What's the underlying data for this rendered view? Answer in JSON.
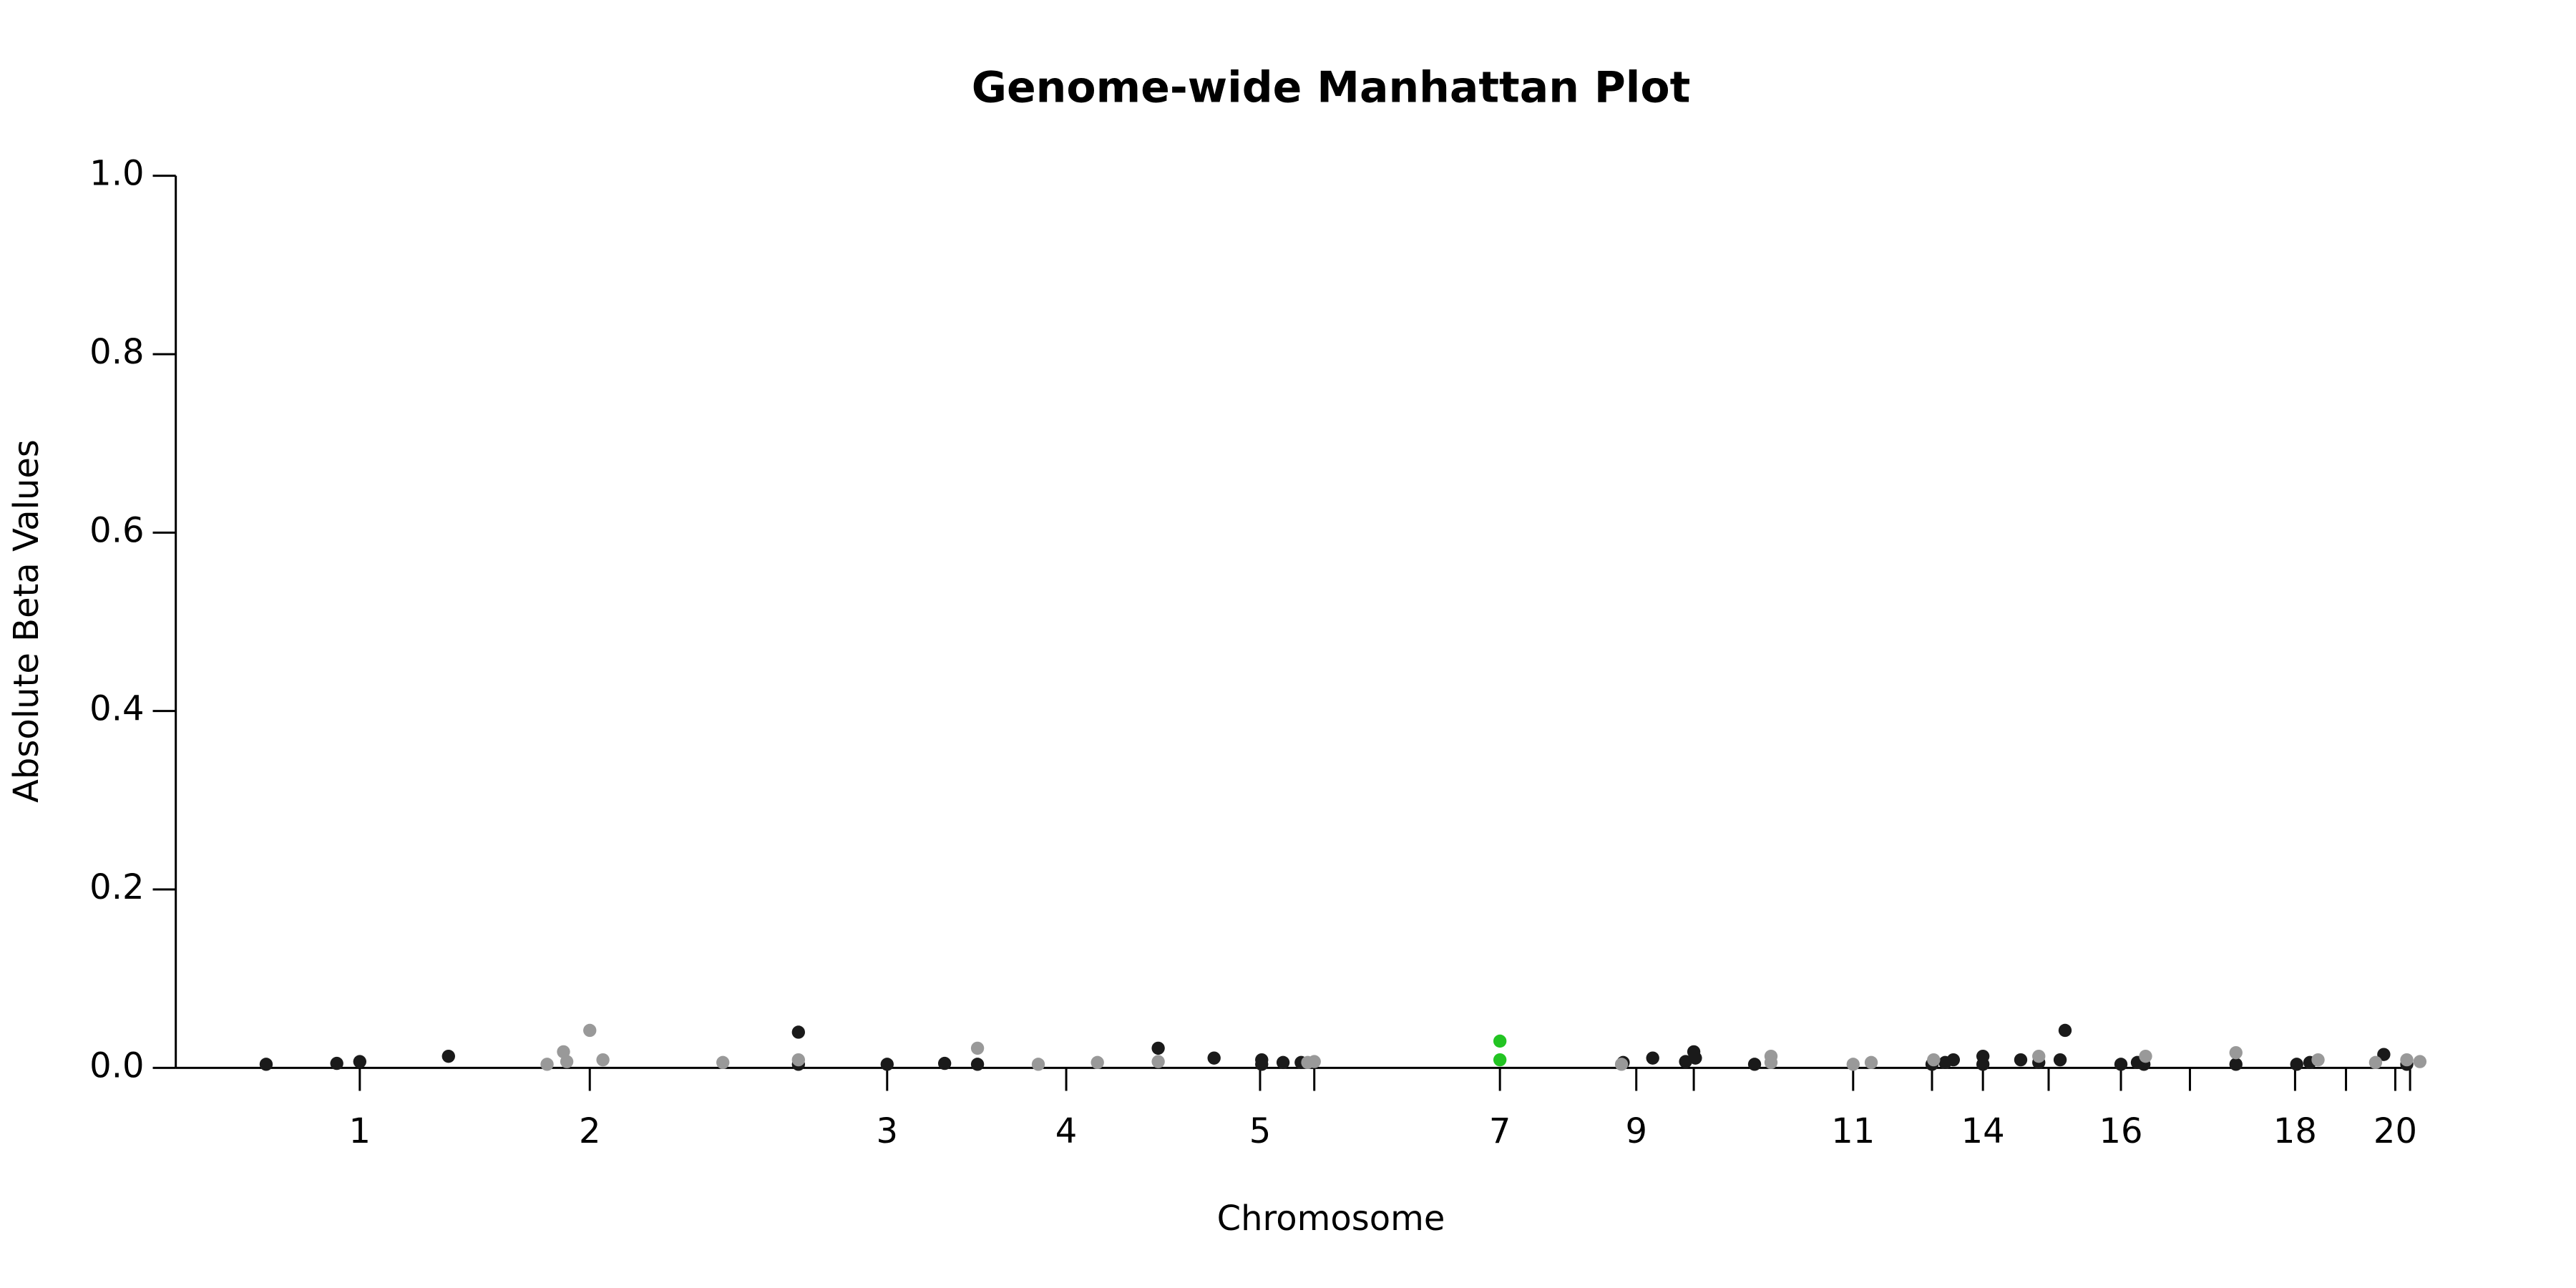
{
  "chart_data": {
    "type": "scatter",
    "title": "Genome-wide Manhattan Plot",
    "x_label": "Chromosome",
    "y_label": "Absolute Beta Values",
    "xlim": [
      107,
      1473
    ],
    "ylim": [
      0,
      1.0
    ],
    "yticks": [
      {
        "value": 0,
        "label": "0.0"
      },
      {
        "value": 0.2,
        "label": "0.2"
      },
      {
        "value": 0.4,
        "label": "0.4"
      },
      {
        "value": 0.6,
        "label": "0.6"
      },
      {
        "value": 0.8,
        "label": "0.8"
      },
      {
        "value": 1.0,
        "label": "1.0"
      }
    ],
    "xticks": [
      {
        "value": 219,
        "label": "1"
      },
      {
        "value": 359,
        "label": "2"
      },
      {
        "value": 540,
        "label": "3"
      },
      {
        "value": 649,
        "label": "4"
      },
      {
        "value": 767,
        "label": "5"
      },
      {
        "value": 800,
        "label": null
      },
      {
        "value": 913,
        "label": "7"
      },
      {
        "value": 996,
        "label": "9"
      },
      {
        "value": 1031,
        "label": null
      },
      {
        "value": 1128,
        "label": "11"
      },
      {
        "value": 1176,
        "label": null
      },
      {
        "value": 1207,
        "label": "14"
      },
      {
        "value": 1247,
        "label": null
      },
      {
        "value": 1291,
        "label": "16"
      },
      {
        "value": 1333,
        "label": null
      },
      {
        "value": 1397,
        "label": "18"
      },
      {
        "value": 1428,
        "label": null
      },
      {
        "value": 1458,
        "label": "20"
      },
      {
        "value": 1467,
        "label": null
      }
    ],
    "series": [
      {
        "color": "#1a1a1a",
        "x": [
          162,
          205,
          219,
          273,
          486,
          486,
          540,
          575,
          595,
          705,
          739,
          768,
          768,
          781,
          792,
          988,
          1006,
          1026,
          1031,
          1032,
          1068,
          1176,
          1184,
          1189,
          1207,
          1207,
          1230,
          1241,
          1254,
          1257,
          1291,
          1301,
          1305,
          1361,
          1398,
          1406,
          1451,
          1465
        ],
        "values": [
          0.004,
          0.005,
          0.007,
          0.013,
          0.04,
          0.004,
          0.004,
          0.005,
          0.004,
          0.022,
          0.011,
          0.009,
          0.004,
          0.006,
          0.006,
          0.006,
          0.011,
          0.007,
          0.018,
          0.011,
          0.004,
          0.004,
          0.006,
          0.009,
          0.013,
          0.004,
          0.009,
          0.006,
          0.009,
          0.042,
          0.004,
          0.006,
          0.004,
          0.004,
          0.004,
          0.006,
          0.015,
          0.004
        ]
      },
      {
        "color": "#999999",
        "x": [
          333,
          343,
          345,
          359,
          367,
          440,
          486,
          595,
          632,
          668,
          705,
          796,
          800,
          987,
          1078,
          1078,
          1128,
          1139,
          1177,
          1241,
          1306,
          1361,
          1411,
          1446,
          1465,
          1473
        ],
        "values": [
          0.004,
          0.018,
          0.007,
          0.042,
          0.009,
          0.006,
          0.009,
          0.022,
          0.004,
          0.006,
          0.007,
          0.006,
          0.007,
          0.004,
          0.013,
          0.006,
          0.004,
          0.006,
          0.009,
          0.013,
          0.013,
          0.017,
          0.009,
          0.006,
          0.009,
          0.007
        ]
      },
      {
        "color": "#22c422",
        "x": [
          913,
          913
        ],
        "values": [
          0.03,
          0.009
        ]
      }
    ]
  }
}
